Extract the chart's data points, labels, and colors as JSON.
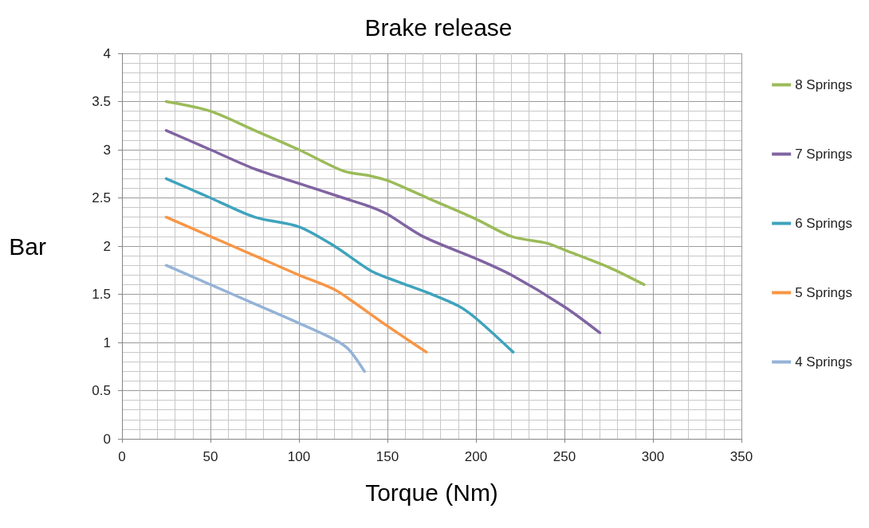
{
  "chart_data": {
    "type": "line",
    "title": "Brake release",
    "xlabel": "Torque (Nm)",
    "ylabel": "Bar",
    "xlim": [
      0,
      350
    ],
    "xticks": [
      0,
      50,
      100,
      150,
      200,
      250,
      300,
      350
    ],
    "ylim": [
      0,
      4
    ],
    "yticks": [
      0,
      0.5,
      1,
      1.5,
      2,
      2.5,
      3,
      3.5,
      4
    ],
    "grid": true,
    "legend": "right",
    "marker": "none",
    "line_style": "solid",
    "series": [
      {
        "name": "8 Springs",
        "color": "#9bbb59",
        "x": [
          25,
          50,
          75,
          100,
          125,
          140,
          150,
          175,
          200,
          220,
          240,
          250,
          275,
          295
        ],
        "values": [
          3.5,
          3.4,
          3.2,
          3.0,
          2.78,
          2.73,
          2.68,
          2.48,
          2.28,
          2.1,
          2.03,
          1.96,
          1.78,
          1.6
        ]
      },
      {
        "name": "7 Springs",
        "color": "#8064a2",
        "x": [
          25,
          50,
          75,
          100,
          125,
          140,
          150,
          170,
          200,
          220,
          250,
          270
        ],
        "values": [
          3.2,
          3.0,
          2.8,
          2.65,
          2.5,
          2.41,
          2.33,
          2.1,
          1.87,
          1.7,
          1.37,
          1.1
        ]
      },
      {
        "name": "6 Springs",
        "color": "#3fa3bd",
        "x": [
          25,
          50,
          75,
          100,
          120,
          140,
          150,
          175,
          190,
          200,
          221
        ],
        "values": [
          2.7,
          2.5,
          2.3,
          2.2,
          2.0,
          1.75,
          1.67,
          1.5,
          1.38,
          1.25,
          0.9
        ]
      },
      {
        "name": "5 Springs",
        "color": "#f79646",
        "x": [
          25,
          50,
          75,
          100,
          120,
          130,
          150,
          172
        ],
        "values": [
          2.3,
          2.1,
          1.9,
          1.7,
          1.55,
          1.43,
          1.17,
          0.9
        ]
      },
      {
        "name": "4 Springs",
        "color": "#95b3d7",
        "x": [
          25,
          50,
          75,
          100,
          120,
          128,
          137
        ],
        "values": [
          1.8,
          1.6,
          1.4,
          1.2,
          1.03,
          0.93,
          0.7
        ]
      }
    ]
  }
}
